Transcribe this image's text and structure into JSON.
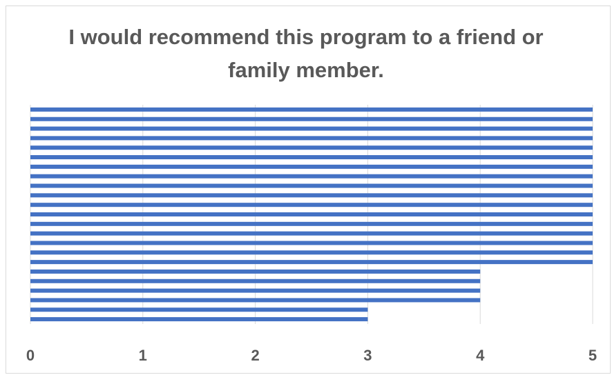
{
  "chart_data": {
    "type": "bar",
    "orientation": "horizontal",
    "title": "I would recommend this program to a friend or family member.",
    "categories": [
      null,
      null,
      null,
      null,
      null,
      null,
      null,
      null,
      null,
      null,
      null,
      null,
      null,
      null,
      null,
      null,
      null,
      null,
      null,
      null,
      null,
      null,
      null
    ],
    "values": [
      5,
      5,
      5,
      5,
      5,
      5,
      5,
      5,
      5,
      5,
      5,
      5,
      5,
      5,
      5,
      5,
      5,
      4,
      4,
      4,
      4,
      3,
      3
    ],
    "color": "#4472c4",
    "xlim": [
      0,
      5
    ],
    "xticks": [
      0,
      1,
      2,
      3,
      4,
      5
    ],
    "grid": true
  }
}
